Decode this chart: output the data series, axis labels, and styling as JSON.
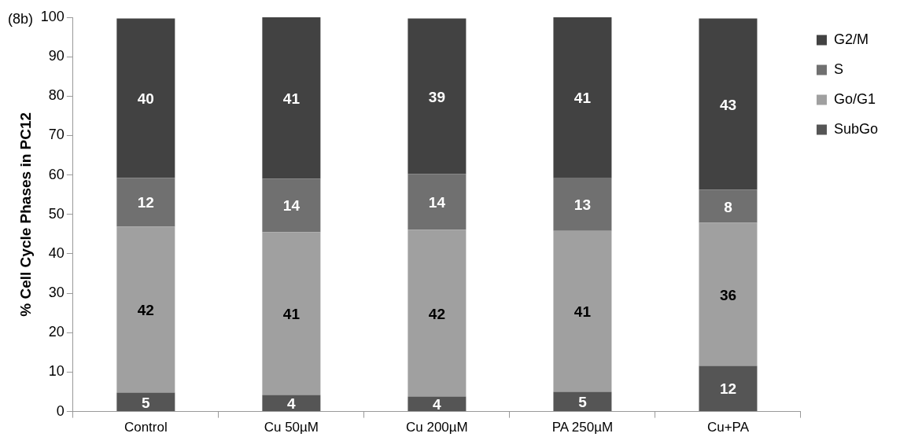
{
  "chart_data": {
    "type": "bar",
    "stacked": true,
    "ylabel": "% Cell Cycle Phases in PC12",
    "annotations": [
      "(8b)"
    ],
    "categories": [
      "Control",
      "Cu 50µM",
      "Cu 200µM",
      "PA 250µM",
      "Cu+PA"
    ],
    "ylim": [
      0,
      100
    ],
    "yticks": [
      0,
      10,
      20,
      30,
      40,
      50,
      60,
      70,
      80,
      90,
      100
    ],
    "grid": false,
    "legend": "top right",
    "series": [
      {
        "name": "SubGo",
        "color": "#555555",
        "values": [
          4.8,
          4.2,
          3.8,
          5.0,
          11.6
        ],
        "value_labels": [
          "5",
          "4",
          "4",
          "5",
          "12"
        ]
      },
      {
        "name": "Go/G1",
        "color": "#a0a0a0",
        "values": [
          42.1,
          41.3,
          42.3,
          40.8,
          36.3
        ],
        "value_labels": [
          "42",
          "41",
          "42",
          "41",
          "36"
        ]
      },
      {
        "name": "S",
        "color": "#707070",
        "values": [
          12.4,
          13.6,
          14.2,
          13.4,
          8.4
        ],
        "value_labels": [
          "12",
          "14",
          "14",
          "13",
          "8"
        ]
      },
      {
        "name": "G2/M",
        "color": "#424242",
        "values": [
          40.4,
          40.9,
          39.4,
          41.1,
          43.4
        ],
        "value_labels": [
          "40",
          "41",
          "39",
          "41",
          "43"
        ]
      }
    ]
  }
}
